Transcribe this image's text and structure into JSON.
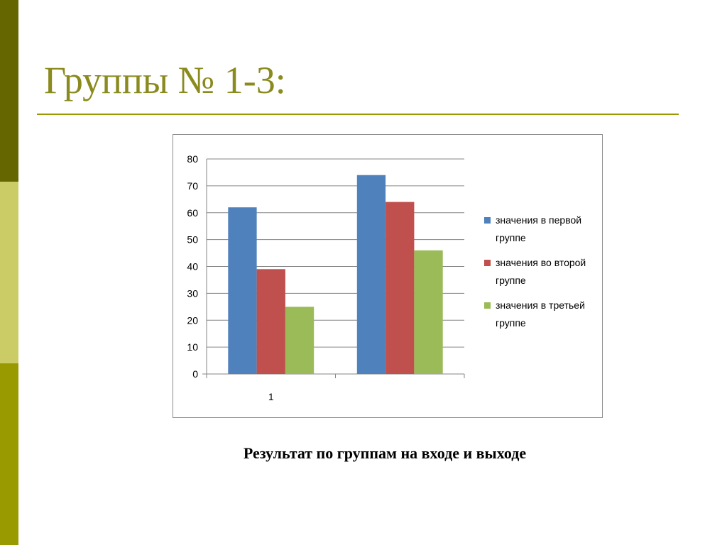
{
  "slide": {
    "title": "Группы № 1-3:",
    "caption": "Результат по группам на входе и выходе"
  },
  "colors": {
    "sidebar_dark": "#666600",
    "sidebar_light": "#cccc66",
    "sidebar_mid": "#999900",
    "title": "#8a8a1e"
  },
  "chart_data": {
    "type": "bar",
    "categories": [
      "1",
      ""
    ],
    "series": [
      {
        "name": "значения в первой группе",
        "values": [
          62,
          74
        ],
        "color": "#4f81bd"
      },
      {
        "name": "значения во второй группе",
        "values": [
          39,
          64
        ],
        "color": "#c0504d"
      },
      {
        "name": "значения в третьей группе",
        "values": [
          25,
          46
        ],
        "color": "#9bbb59"
      }
    ],
    "ylim": [
      0,
      80
    ],
    "yticks": [
      "0",
      "10",
      "20",
      "30",
      "40",
      "50",
      "60",
      "70",
      "80"
    ],
    "grid": true,
    "legend": "right",
    "legend_lines": [
      [
        "значения в первой",
        "группе"
      ],
      [
        "значения во второй",
        "группе"
      ],
      [
        "значения в третьей",
        "группе"
      ]
    ]
  }
}
